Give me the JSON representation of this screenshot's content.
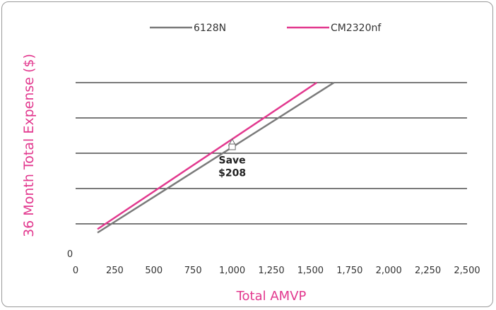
{
  "chart_data": {
    "type": "line",
    "title": "",
    "xlabel": "Total AMVP",
    "ylabel": "36 Month Total Expense ($)",
    "xlim": [
      0,
      2500
    ],
    "x_ticks": [
      0,
      250,
      500,
      750,
      1000,
      1250,
      1500,
      1750,
      2000,
      2250,
      2500
    ],
    "x_tick_labels": [
      "0",
      "250",
      "500",
      "750",
      "1,000",
      "1,250",
      "1,500",
      "1,750",
      "2,000",
      "2,250",
      "2,500"
    ],
    "ylim": [
      0,
      6
    ],
    "y_gridlines": [
      1,
      2,
      3,
      4,
      5
    ],
    "y_tick_labels": [
      "0"
    ],
    "grid": true,
    "legend_position": "top-center",
    "series": [
      {
        "name": "6128N",
        "color": "#7a7a7a",
        "x": [
          140,
          1650
        ],
        "y": [
          0.75,
          5.0
        ]
      },
      {
        "name": "CM2320nf",
        "color": "#e2388e",
        "x": [
          140,
          1540
        ],
        "y": [
          0.85,
          5.0
        ]
      }
    ],
    "markers": [
      {
        "series": "CM2320nf",
        "shape": "triangle",
        "x": 1000,
        "y": 3.3
      },
      {
        "series": "6128N",
        "shape": "square",
        "x": 1000,
        "y": 3.18
      }
    ],
    "annotation": {
      "lines": [
        "Save",
        "$208"
      ],
      "x": 1000,
      "y": 2.55
    }
  }
}
